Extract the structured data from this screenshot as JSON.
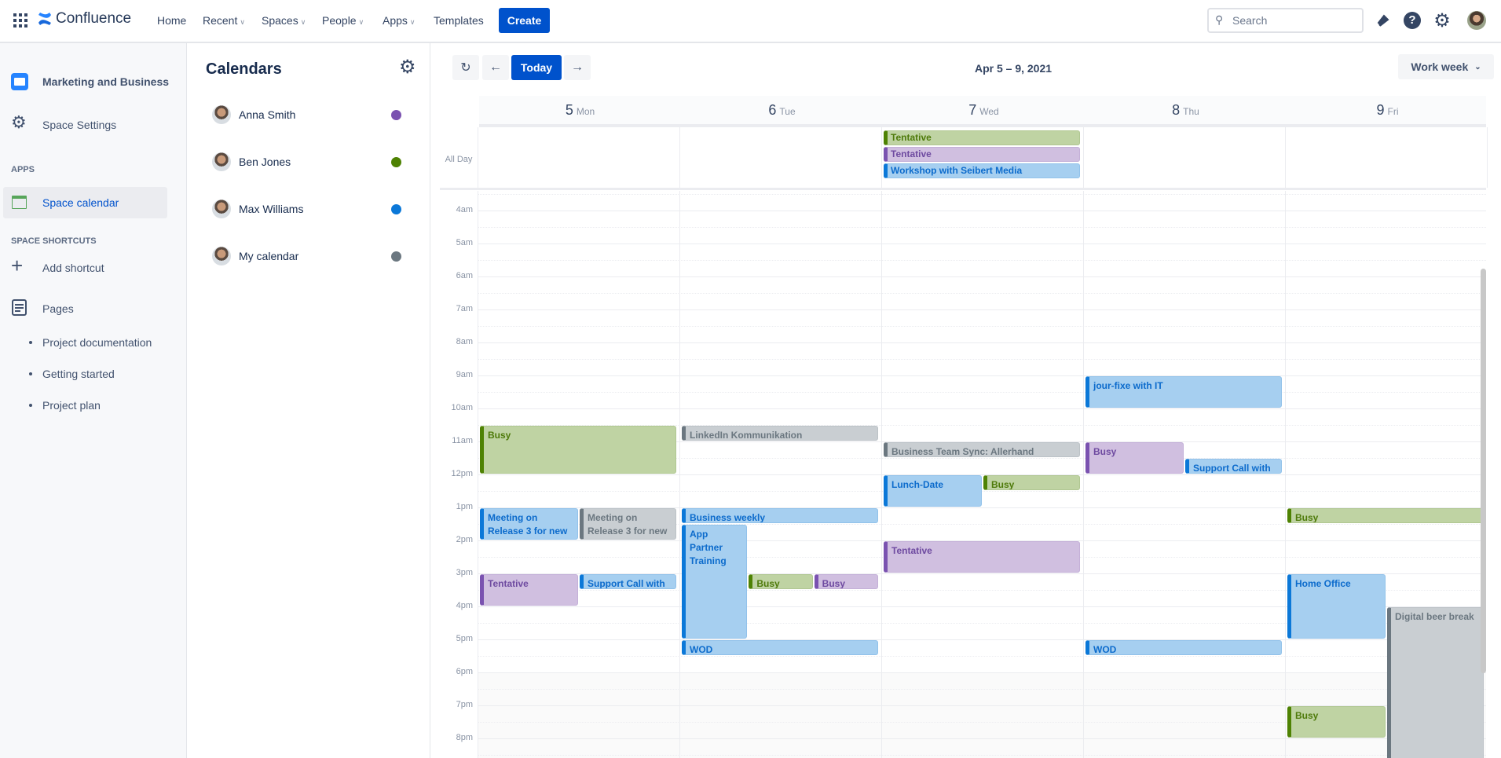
{
  "topbar": {
    "logo": "Confluence",
    "nav": [
      {
        "label": "Home",
        "dropdown": false
      },
      {
        "label": "Recent",
        "dropdown": true
      },
      {
        "label": "Spaces",
        "dropdown": true
      },
      {
        "label": "People",
        "dropdown": true
      },
      {
        "label": "Apps",
        "dropdown": true
      },
      {
        "label": "Templates",
        "dropdown": false
      }
    ],
    "create": "Create",
    "search_placeholder": "Search",
    "icons": [
      "notifications-icon",
      "help-icon",
      "settings-icon",
      "user-avatar"
    ]
  },
  "sidebar": {
    "space": "Marketing and Business",
    "settings": "Space Settings",
    "apps_heading": "APPS",
    "space_calendar": "Space calendar",
    "shortcuts_heading": "SPACE SHORTCUTS",
    "add_shortcut": "Add shortcut",
    "pages": "Pages",
    "page_items": [
      "Project documentation",
      "Getting started",
      "Project plan"
    ]
  },
  "calendars": {
    "title": "Calendars",
    "items": [
      {
        "name": "Anna Smith",
        "color": "#7a52b0"
      },
      {
        "name": "Ben Jones",
        "color": "#4e8203"
      },
      {
        "name": "Max Williams",
        "color": "#0b78d8"
      },
      {
        "name": "My calendar",
        "color": "#6b7780"
      }
    ]
  },
  "toolbar": {
    "today": "Today",
    "range": "Apr 5 – 9, 2021",
    "view": "Work week"
  },
  "days": [
    {
      "num": "5",
      "name": "Mon"
    },
    {
      "num": "6",
      "name": "Tue"
    },
    {
      "num": "7",
      "name": "Wed"
    },
    {
      "num": "8",
      "name": "Thu"
    },
    {
      "num": "9",
      "name": "Fri"
    }
  ],
  "allday_label": "All Day",
  "allday_events": [
    {
      "day": 2,
      "title": "Tentative",
      "color": "green"
    },
    {
      "day": 2,
      "title": "Tentative",
      "color": "purple"
    },
    {
      "day": 2,
      "title": "Workshop with Seibert Media",
      "color": "blue"
    }
  ],
  "hours": [
    "4am",
    "5am",
    "6am",
    "7am",
    "8am",
    "9am",
    "10am",
    "11am",
    "12pm",
    "1pm",
    "2pm",
    "3pm",
    "4pm",
    "5pm",
    "6pm",
    "7pm",
    "8pm"
  ],
  "events": [
    {
      "day": 0,
      "start": 10.5,
      "end": 12,
      "title": "Busy",
      "color": "green"
    },
    {
      "day": 0,
      "start": 13,
      "end": 14,
      "title": "Meeting on Release 3 for new",
      "color": "blue"
    },
    {
      "day": 0,
      "start": 13,
      "end": 14,
      "title": "Meeting on Release 3 for new",
      "color": "gray"
    },
    {
      "day": 0,
      "start": 15,
      "end": 16,
      "title": "Tentative",
      "color": "purple"
    },
    {
      "day": 0,
      "start": 15,
      "end": 15.5,
      "title": "Support Call with",
      "color": "blue"
    },
    {
      "day": 1,
      "start": 10.5,
      "end": 11,
      "title": "LinkedIn Kommunikation",
      "color": "gray"
    },
    {
      "day": 1,
      "start": 13,
      "end": 13.5,
      "title": "Business weekly",
      "color": "blue"
    },
    {
      "day": 1,
      "start": 13.5,
      "end": 17,
      "title": "App Partner Training",
      "color": "blue"
    },
    {
      "day": 1,
      "start": 15,
      "end": 15.5,
      "title": "Busy",
      "color": "green"
    },
    {
      "day": 1,
      "start": 15,
      "end": 15.5,
      "title": "Busy",
      "color": "purple"
    },
    {
      "day": 1,
      "start": 17,
      "end": 17.5,
      "title": "WOD",
      "color": "blue"
    },
    {
      "day": 2,
      "start": 11,
      "end": 11.5,
      "title": "Business Team Sync: Allerhand",
      "color": "gray"
    },
    {
      "day": 2,
      "start": 12,
      "end": 13,
      "title": "Lunch-Date",
      "color": "blue"
    },
    {
      "day": 2,
      "start": 12,
      "end": 12.5,
      "title": "Busy",
      "color": "green"
    },
    {
      "day": 2,
      "start": 14,
      "end": 15,
      "title": "Tentative",
      "color": "purple"
    },
    {
      "day": 3,
      "start": 9,
      "end": 10,
      "title": "jour-fixe with IT",
      "color": "blue"
    },
    {
      "day": 3,
      "start": 11,
      "end": 12,
      "title": "Busy",
      "color": "purple"
    },
    {
      "day": 3,
      "start": 11.5,
      "end": 12,
      "title": "Support Call with",
      "color": "blue"
    },
    {
      "day": 3,
      "start": 17,
      "end": 17.5,
      "title": "WOD",
      "color": "blue"
    },
    {
      "day": 4,
      "start": 13,
      "end": 13.5,
      "title": "Busy",
      "color": "green"
    },
    {
      "day": 4,
      "start": 15,
      "end": 17,
      "title": "Home Office",
      "color": "blue"
    },
    {
      "day": 4,
      "start": 16,
      "end": 21,
      "title": "Digital beer break",
      "color": "gray"
    },
    {
      "day": 4,
      "start": 19,
      "end": 20,
      "title": "Busy",
      "color": "green"
    }
  ]
}
